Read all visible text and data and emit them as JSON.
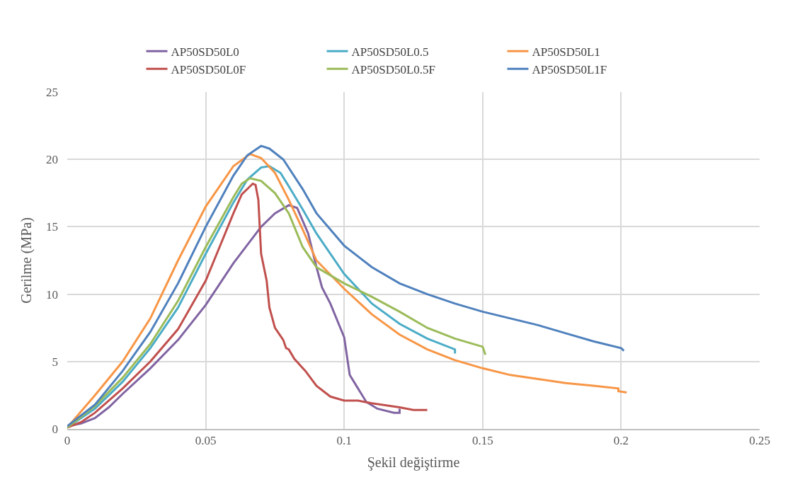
{
  "chart_data": {
    "type": "line",
    "xlabel": "Şekil değiştirme",
    "ylabel": "Gerilme (MPa)",
    "xlim": [
      0,
      0.25
    ],
    "xticks": [
      0,
      0.05,
      0.1,
      0.15,
      0.2,
      0.25
    ],
    "ylim": [
      0,
      25
    ],
    "yticks": [
      0,
      5,
      10,
      15,
      20,
      25
    ],
    "grid": true,
    "legend": "top",
    "marker": "none",
    "line_style": "solid",
    "series": [
      {
        "name": "AP50SD50L0",
        "color": "#8064a2",
        "x": [
          0,
          0.005,
          0.01,
          0.015,
          0.02,
          0.03,
          0.04,
          0.05,
          0.06,
          0.07,
          0.075,
          0.08,
          0.083,
          0.087,
          0.09,
          0.092,
          0.095,
          0.1,
          0.102,
          0.105,
          0.108,
          0.112,
          0.118,
          0.12,
          0.12
        ],
        "values": [
          0.2,
          0.4,
          0.8,
          1.6,
          2.6,
          4.5,
          6.6,
          9.2,
          12.3,
          15.0,
          16.0,
          16.6,
          16.4,
          14.5,
          12.0,
          10.5,
          9.3,
          6.8,
          4.0,
          3.0,
          2.0,
          1.5,
          1.2,
          1.2,
          1.5
        ]
      },
      {
        "name": "AP50SD50L0.5",
        "color": "#4bacc6",
        "x": [
          0,
          0.01,
          0.02,
          0.03,
          0.04,
          0.05,
          0.06,
          0.065,
          0.07,
          0.073,
          0.077,
          0.08,
          0.085,
          0.09,
          0.1,
          0.11,
          0.12,
          0.13,
          0.14,
          0.14
        ],
        "values": [
          0.1,
          1.5,
          3.5,
          6.0,
          9.0,
          13.0,
          16.8,
          18.5,
          19.4,
          19.5,
          19.0,
          18.0,
          16.3,
          14.5,
          11.5,
          9.3,
          7.8,
          6.7,
          5.9,
          5.6
        ]
      },
      {
        "name": "AP50SD50L1",
        "color": "#f79646",
        "x": [
          0,
          0.01,
          0.02,
          0.03,
          0.04,
          0.05,
          0.06,
          0.066,
          0.07,
          0.075,
          0.08,
          0.085,
          0.09,
          0.1,
          0.11,
          0.12,
          0.13,
          0.14,
          0.15,
          0.16,
          0.17,
          0.18,
          0.19,
          0.199,
          0.199,
          0.202
        ],
        "values": [
          0.1,
          2.5,
          5.0,
          8.2,
          12.5,
          16.5,
          19.5,
          20.4,
          20.1,
          19.0,
          17.0,
          14.8,
          12.5,
          10.4,
          8.5,
          7.0,
          5.9,
          5.1,
          4.5,
          4.0,
          3.7,
          3.4,
          3.2,
          3.0,
          2.8,
          2.7
        ]
      },
      {
        "name": "AP50SD50L0F",
        "color": "#c0504d",
        "x": [
          0,
          0.005,
          0.01,
          0.02,
          0.03,
          0.04,
          0.05,
          0.055,
          0.06,
          0.063,
          0.067,
          0.068,
          0.069,
          0.07,
          0.072,
          0.073,
          0.075,
          0.078,
          0.079,
          0.08,
          0.082,
          0.086,
          0.09,
          0.095,
          0.1,
          0.105,
          0.11,
          0.12,
          0.125,
          0.13
        ],
        "values": [
          0.1,
          0.5,
          1.2,
          3.0,
          5.0,
          7.4,
          11.0,
          13.5,
          16.0,
          17.4,
          18.2,
          18.1,
          17.0,
          13.0,
          11.0,
          9.0,
          7.5,
          6.6,
          6.0,
          5.9,
          5.2,
          4.3,
          3.2,
          2.4,
          2.1,
          2.1,
          1.9,
          1.6,
          1.4,
          1.4
        ]
      },
      {
        "name": "AP50SD50L0.5F",
        "color": "#9bbb59",
        "x": [
          0,
          0.01,
          0.02,
          0.03,
          0.04,
          0.05,
          0.06,
          0.063,
          0.066,
          0.07,
          0.075,
          0.08,
          0.085,
          0.09,
          0.1,
          0.11,
          0.12,
          0.13,
          0.14,
          0.15,
          0.151
        ],
        "values": [
          0.1,
          1.7,
          3.8,
          6.3,
          9.5,
          13.5,
          17.2,
          18.2,
          18.6,
          18.4,
          17.5,
          16.0,
          13.5,
          12.0,
          10.8,
          9.8,
          8.7,
          7.5,
          6.7,
          6.1,
          5.5
        ]
      },
      {
        "name": "AP50SD50L1F",
        "color": "#4f81bd",
        "x": [
          0,
          0.01,
          0.02,
          0.03,
          0.04,
          0.05,
          0.06,
          0.065,
          0.07,
          0.073,
          0.078,
          0.085,
          0.09,
          0.1,
          0.11,
          0.12,
          0.13,
          0.14,
          0.15,
          0.16,
          0.17,
          0.18,
          0.19,
          0.2,
          0.201
        ],
        "values": [
          0.2,
          1.8,
          4.3,
          7.2,
          10.8,
          15.0,
          18.8,
          20.3,
          21.0,
          20.8,
          20.0,
          17.8,
          16.0,
          13.6,
          12.0,
          10.8,
          10.0,
          9.3,
          8.7,
          8.2,
          7.7,
          7.1,
          6.5,
          6.0,
          5.8
        ]
      }
    ]
  }
}
